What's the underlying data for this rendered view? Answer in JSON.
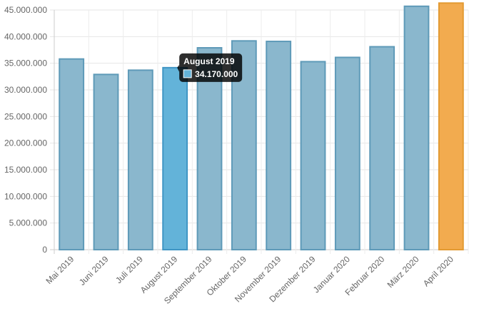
{
  "chart_data": {
    "type": "bar",
    "title": "",
    "xlabel": "",
    "ylabel": "",
    "categories": [
      "Mai 2019",
      "Juni 2019",
      "Juli 2019",
      "August 2019",
      "September 2019",
      "Oktober 2019",
      "November 2019",
      "Dezember 2019",
      "Januar 2020",
      "Februar 2020",
      "März 2020",
      "April 2020"
    ],
    "values": [
      35800000,
      32900000,
      33700000,
      34170000,
      37900000,
      39200000,
      39100000,
      35300000,
      36100000,
      38100000,
      45700000,
      46300000
    ],
    "ylim": [
      0,
      45000000
    ],
    "yticks": [
      0,
      5000000,
      10000000,
      15000000,
      20000000,
      25000000,
      30000000,
      35000000,
      40000000,
      45000000
    ],
    "ytick_labels": [
      "0",
      "5.000.000",
      "10.000.000",
      "15.000.000",
      "20.000.000",
      "25.000.000",
      "30.000.000",
      "35.000.000",
      "40.000.000",
      "45.000.000"
    ],
    "grid": true,
    "colors": {
      "bar_fill": "#8ab7cd",
      "bar_stroke": "#5e9ab8",
      "hover_fill": "#63b3d9",
      "hover_stroke": "#3f95c4",
      "highlight_fill": "#f2ab4f",
      "highlight_stroke": "#e39a32"
    },
    "hovered_index": 3,
    "highlighted_index": 11,
    "tooltip": {
      "title": "August 2019",
      "value_label": "34.170.000"
    }
  }
}
